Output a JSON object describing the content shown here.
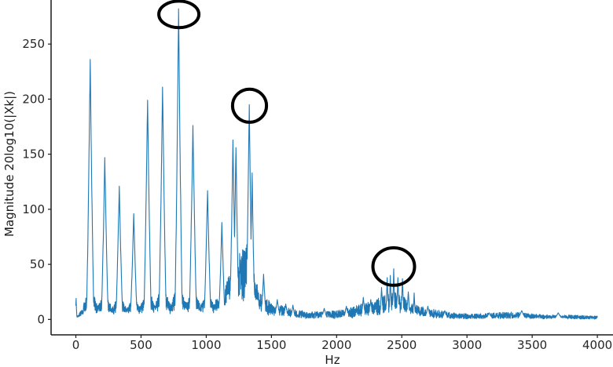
{
  "figure": {
    "background": "#ffffff"
  },
  "chart_data": {
    "type": "line",
    "title": "",
    "xlabel": "Hz",
    "ylabel": "Magnitude 20log10(|Xk|)",
    "legend": null,
    "grid": false,
    "line_color": "#1f77b4",
    "axis_color": "#1a1a1a",
    "tick_label_color": "#262626",
    "annotation_color": "#000000",
    "x_ticks": [
      0,
      500,
      1000,
      1500,
      2000,
      2500,
      3000,
      3500,
      4000
    ],
    "y_ticks": [
      0,
      50,
      100,
      150,
      200,
      250
    ],
    "xlim_visible": [
      -190,
      4120
    ],
    "ylim_visible": [
      -14,
      290
    ],
    "x_unit": "Hz",
    "description": "FFT magnitude spectrum with harmonic peaks near multiples of ~110 Hz; three peaks circled in black.",
    "peaks": [
      {
        "hz": 2,
        "mag": 19,
        "w": 7,
        "sk": 3
      },
      {
        "hz": 110,
        "mag": 236,
        "w": 30,
        "sk": 26
      },
      {
        "hz": 222,
        "mag": 147,
        "w": 28,
        "sk": 22
      },
      {
        "hz": 333,
        "mag": 121,
        "w": 28,
        "sk": 20
      },
      {
        "hz": 444,
        "mag": 96,
        "w": 28,
        "sk": 18
      },
      {
        "hz": 550,
        "mag": 199,
        "w": 30,
        "sk": 26
      },
      {
        "hz": 665,
        "mag": 211,
        "w": 30,
        "sk": 28
      },
      {
        "hz": 788,
        "mag": 282,
        "w": 30,
        "sk": 30
      },
      {
        "hz": 898,
        "mag": 176,
        "w": 30,
        "sk": 26
      },
      {
        "hz": 1010,
        "mag": 117,
        "w": 28,
        "sk": 22
      },
      {
        "hz": 1120,
        "mag": 88,
        "w": 26,
        "sk": 20
      },
      {
        "hz": 1205,
        "mag": 163,
        "w": 26,
        "sk": 40
      },
      {
        "hz": 1228,
        "mag": 156,
        "w": 24,
        "sk": 40
      },
      {
        "hz": 1330,
        "mag": 195,
        "w": 26,
        "sk": 42
      },
      {
        "hz": 1352,
        "mag": 133,
        "w": 22,
        "sk": 36
      },
      {
        "hz": 1440,
        "mag": 41,
        "w": 22,
        "sk": 14
      },
      {
        "hz": 1545,
        "mag": 18,
        "w": 25,
        "sk": 8
      },
      {
        "hz": 1610,
        "mag": 14,
        "w": 22,
        "sk": 6
      },
      {
        "hz": 1665,
        "mag": 13,
        "w": 22,
        "sk": 6
      },
      {
        "hz": 1905,
        "mag": 10,
        "w": 28,
        "sk": 4
      },
      {
        "hz": 2075,
        "mag": 12,
        "w": 24,
        "sk": 5
      },
      {
        "hz": 2205,
        "mag": 20,
        "w": 20,
        "sk": 8
      },
      {
        "hz": 2262,
        "mag": 18,
        "w": 18,
        "sk": 8
      },
      {
        "hz": 2345,
        "mag": 29,
        "w": 16,
        "sk": 10
      },
      {
        "hz": 2388,
        "mag": 38,
        "w": 14,
        "sk": 12
      },
      {
        "hz": 2412,
        "mag": 40,
        "w": 12,
        "sk": 12
      },
      {
        "hz": 2438,
        "mag": 46,
        "w": 12,
        "sk": 12
      },
      {
        "hz": 2470,
        "mag": 38,
        "w": 14,
        "sk": 12
      },
      {
        "hz": 2505,
        "mag": 37,
        "w": 14,
        "sk": 11
      },
      {
        "hz": 2550,
        "mag": 25,
        "w": 16,
        "sk": 9
      },
      {
        "hz": 2595,
        "mag": 24,
        "w": 12,
        "sk": 8
      },
      {
        "hz": 2700,
        "mag": 12,
        "w": 25,
        "sk": 5
      },
      {
        "hz": 2830,
        "mag": 8,
        "w": 25,
        "sk": 3
      },
      {
        "hz": 3170,
        "mag": 6,
        "w": 30,
        "sk": 3
      },
      {
        "hz": 3420,
        "mag": 8,
        "w": 35,
        "sk": 3
      },
      {
        "hz": 3700,
        "mag": 6,
        "w": 35,
        "sk": 3
      }
    ],
    "noise_floor_envelope": [
      [
        0,
        3
      ],
      [
        50,
        5
      ],
      [
        90,
        9
      ],
      [
        140,
        8
      ],
      [
        200,
        9
      ],
      [
        260,
        8
      ],
      [
        320,
        8
      ],
      [
        400,
        9
      ],
      [
        480,
        10
      ],
      [
        560,
        12
      ],
      [
        640,
        13
      ],
      [
        720,
        16
      ],
      [
        800,
        17
      ],
      [
        880,
        15
      ],
      [
        960,
        14
      ],
      [
        1060,
        16
      ],
      [
        1140,
        26
      ],
      [
        1190,
        48
      ],
      [
        1250,
        62
      ],
      [
        1300,
        68
      ],
      [
        1335,
        72
      ],
      [
        1365,
        48
      ],
      [
        1400,
        28
      ],
      [
        1455,
        20
      ],
      [
        1510,
        14
      ],
      [
        1570,
        13
      ],
      [
        1630,
        11
      ],
      [
        1700,
        9
      ],
      [
        1790,
        7
      ],
      [
        1900,
        7
      ],
      [
        2000,
        8
      ],
      [
        2080,
        10
      ],
      [
        2160,
        13
      ],
      [
        2240,
        16
      ],
      [
        2310,
        19
      ],
      [
        2380,
        23
      ],
      [
        2440,
        25
      ],
      [
        2500,
        22
      ],
      [
        2560,
        17
      ],
      [
        2620,
        13
      ],
      [
        2700,
        10
      ],
      [
        2800,
        8
      ],
      [
        2900,
        6
      ],
      [
        3050,
        5
      ],
      [
        3200,
        6
      ],
      [
        3350,
        7
      ],
      [
        3500,
        5
      ],
      [
        3650,
        4
      ],
      [
        3800,
        4
      ],
      [
        4000,
        3
      ]
    ],
    "annotations": [
      {
        "shape": "ellipse",
        "hz": 790,
        "mag": 277,
        "rx_hz": 154,
        "ry_mag": 12,
        "note": "circled peak ~790 Hz, magnitude ~282"
      },
      {
        "shape": "ellipse",
        "hz": 1332,
        "mag": 194,
        "rx_hz": 130,
        "ry_mag": 15,
        "note": "circled peak ~1330 Hz, magnitude ~195"
      },
      {
        "shape": "ellipse",
        "hz": 2438,
        "mag": 48,
        "rx_hz": 160,
        "ry_mag": 17,
        "note": "circled cluster ~2440 Hz, magnitude ~46"
      }
    ]
  }
}
